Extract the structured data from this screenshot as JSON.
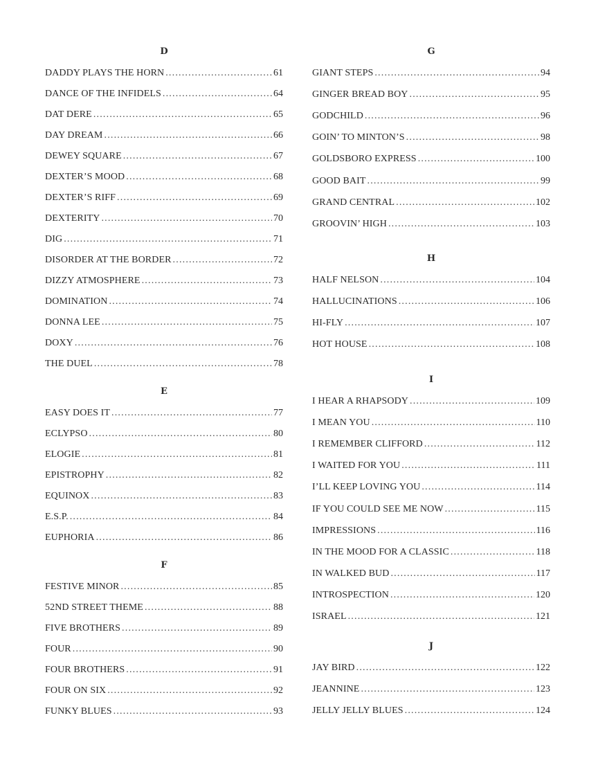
{
  "columns": [
    {
      "sections": [
        {
          "letter": "D",
          "entries": [
            {
              "title": "DADDY PLAYS THE HORN",
              "page": "61"
            },
            {
              "title": "DANCE OF THE INFIDELS",
              "page": "64"
            },
            {
              "title": "DAT DERE",
              "page": "65"
            },
            {
              "title": "DAY DREAM",
              "page": "66"
            },
            {
              "title": "DEWEY SQUARE",
              "page": "67"
            },
            {
              "title": "DEXTER’S MOOD",
              "page": "68"
            },
            {
              "title": "DEXTER’S RIFF",
              "page": "69"
            },
            {
              "title": "DEXTERITY",
              "page": "70"
            },
            {
              "title": "DIG",
              "page": "71"
            },
            {
              "title": "DISORDER AT THE BORDER",
              "page": "72"
            },
            {
              "title": "DIZZY ATMOSPHERE",
              "page": "73"
            },
            {
              "title": "DOMINATION",
              "page": "74"
            },
            {
              "title": "DONNA LEE",
              "page": "75"
            },
            {
              "title": "DOXY",
              "page": "76"
            },
            {
              "title": "THE DUEL",
              "page": "78"
            }
          ]
        },
        {
          "letter": "E",
          "entries": [
            {
              "title": "EASY DOES IT",
              "page": "77"
            },
            {
              "title": "ECLYPSO",
              "page": "80"
            },
            {
              "title": "ELOGIE",
              "page": "81"
            },
            {
              "title": "EPISTROPHY",
              "page": "82"
            },
            {
              "title": "EQUINOX",
              "page": "83"
            },
            {
              "title": "E.S.P.",
              "page": "84"
            },
            {
              "title": "EUPHORIA",
              "page": "86"
            }
          ]
        },
        {
          "letter": "F",
          "entries": [
            {
              "title": "FESTIVE MINOR",
              "page": "85"
            },
            {
              "title": "52ND STREET THEME",
              "page": "88"
            },
            {
              "title": "FIVE BROTHERS",
              "page": "89"
            },
            {
              "title": "FOUR",
              "page": "90"
            },
            {
              "title": "FOUR BROTHERS",
              "page": "91"
            },
            {
              "title": "FOUR ON SIX",
              "page": "92"
            },
            {
              "title": "FUNKY BLUES",
              "page": "93"
            }
          ]
        }
      ]
    },
    {
      "sections": [
        {
          "letter": "G",
          "entries": [
            {
              "title": "GIANT STEPS",
              "page": "94"
            },
            {
              "title": "GINGER BREAD BOY",
              "page": "95"
            },
            {
              "title": "GODCHILD",
              "page": "96"
            },
            {
              "title": "GOIN’ TO MINTON’S",
              "page": "98"
            },
            {
              "title": "GOLDSBORO EXPRESS",
              "page": "100"
            },
            {
              "title": "GOOD BAIT",
              "page": "99"
            },
            {
              "title": "GRAND CENTRAL",
              "page": "102"
            },
            {
              "title": "GROOVIN’ HIGH",
              "page": "103"
            }
          ]
        },
        {
          "letter": "H",
          "entries": [
            {
              "title": "HALF NELSON",
              "page": "104"
            },
            {
              "title": "HALLUCINATIONS",
              "page": "106"
            },
            {
              "title": "HI-FLY",
              "page": "107"
            },
            {
              "title": "HOT HOUSE",
              "page": "108"
            }
          ]
        },
        {
          "letter": "I",
          "entries": [
            {
              "title": "I HEAR A RHAPSODY",
              "page": "109"
            },
            {
              "title": "I MEAN YOU",
              "page": "110"
            },
            {
              "title": "I REMEMBER CLIFFORD",
              "page": "112"
            },
            {
              "title": "I WAITED FOR YOU",
              "page": "111"
            },
            {
              "title": "I’LL KEEP LOVING YOU",
              "page": "114"
            },
            {
              "title": "IF YOU COULD SEE ME NOW",
              "page": "115"
            },
            {
              "title": "IMPRESSIONS",
              "page": "116"
            },
            {
              "title": "IN THE MOOD FOR A CLASSIC",
              "page": "118"
            },
            {
              "title": "IN WALKED BUD",
              "page": "117"
            },
            {
              "title": "INTROSPECTION",
              "page": "120"
            },
            {
              "title": "ISRAEL",
              "page": "121"
            }
          ]
        },
        {
          "letter": "J",
          "entries": [
            {
              "title": "JAY BIRD",
              "page": "122"
            },
            {
              "title": "JEANNINE",
              "page": "123"
            },
            {
              "title": "JELLY JELLY BLUES",
              "page": "124"
            }
          ]
        }
      ]
    }
  ]
}
